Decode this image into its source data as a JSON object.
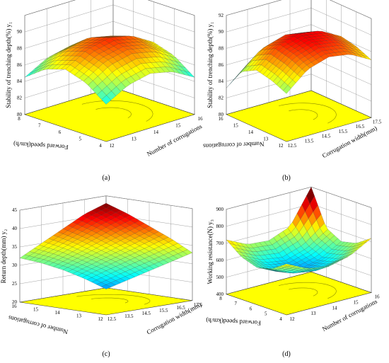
{
  "figure": {
    "panels": [
      "(a)",
      "(b)",
      "(c)",
      "(d)"
    ]
  },
  "chart_data": [
    {
      "panel": "(a)",
      "type": "surface",
      "xlabel": "Forward speed(km/h)",
      "ylabel": "Number of corrugations",
      "zlabel": "Stability of trenching depth(%) y₁",
      "x_ticks": [
        "4",
        "5",
        "6",
        "7",
        "8"
      ],
      "y_ticks": [
        "12",
        "13",
        "14",
        "15",
        "16"
      ],
      "z_ticks": [
        "80",
        "82",
        "84",
        "86",
        "88",
        "90"
      ],
      "xlim": [
        4,
        8
      ],
      "ylim": [
        12,
        16
      ],
      "zlim": [
        80,
        92
      ],
      "surface": {
        "grid_x": [
          4,
          5,
          6,
          7,
          8
        ],
        "grid_y": [
          12,
          13,
          14,
          15,
          16
        ],
        "z": [
          [
            84.5,
            86.0,
            86.6,
            86.0,
            84.5
          ],
          [
            86.3,
            87.9,
            88.5,
            87.9,
            86.3
          ],
          [
            87.1,
            88.7,
            89.3,
            88.7,
            87.1
          ],
          [
            86.3,
            87.9,
            88.5,
            87.9,
            86.3
          ],
          [
            84.5,
            86.0,
            86.6,
            86.0,
            84.5
          ]
        ]
      },
      "floor_color": "#ffff00"
    },
    {
      "panel": "(b)",
      "type": "surface",
      "xlabel": "Number of corrugations",
      "ylabel": "Corrugation width(mm)",
      "zlabel": "Stability of trenching depth(%) y₁",
      "x_ticks": [
        "12",
        "13",
        "14",
        "15",
        "16"
      ],
      "y_ticks": [
        "12.5",
        "13.5",
        "14.5",
        "15.5",
        "16.5",
        "17.5"
      ],
      "z_ticks": [
        "80",
        "82",
        "84",
        "86",
        "88",
        "90",
        "92"
      ],
      "xlim": [
        12,
        16
      ],
      "ylim": [
        12.5,
        17.5
      ],
      "zlim": [
        80,
        92
      ],
      "surface": {
        "grid_x": [
          12,
          13,
          14,
          15,
          16
        ],
        "grid_y": [
          12.5,
          13.75,
          15,
          16.25,
          17.5
        ],
        "z": [
          [
            85.8,
            88.0,
            88.8,
            88.4,
            87.0
          ],
          [
            86.6,
            88.8,
            89.6,
            89.2,
            87.8
          ],
          [
            87.0,
            89.2,
            90.0,
            89.6,
            88.2
          ],
          [
            86.0,
            88.2,
            89.0,
            88.6,
            87.2
          ],
          [
            83.2,
            85.4,
            86.2,
            85.8,
            84.4
          ]
        ]
      },
      "floor_color": "#ffff00"
    },
    {
      "panel": "(c)",
      "type": "surface",
      "xlabel": "Number of corrugations",
      "ylabel": "Corrugation width(mm)",
      "zlabel": "Return depth(mm) y₂",
      "x_ticks": [
        "12",
        "13",
        "14",
        "15",
        "16"
      ],
      "y_ticks": [
        "12.5",
        "13.5",
        "14.5",
        "15.5",
        "16.5",
        "17.5"
      ],
      "z_ticks": [
        "20",
        "25",
        "30",
        "35",
        "40",
        "45"
      ],
      "xlim": [
        12,
        16
      ],
      "ylim": [
        12.5,
        17.5
      ],
      "zlim": [
        20,
        45
      ],
      "surface": {
        "grid_x": [
          12,
          13,
          14,
          15,
          16
        ],
        "grid_y": [
          12.5,
          13.75,
          15,
          16.25,
          17.5
        ],
        "z": [
          [
            27.0,
            28.5,
            30.0,
            31.5,
            33.0
          ],
          [
            29.0,
            30.8,
            32.5,
            34.2,
            36.0
          ],
          [
            30.5,
            32.5,
            34.5,
            36.5,
            38.5
          ],
          [
            31.5,
            34.0,
            36.5,
            39.0,
            41.0
          ],
          [
            32.0,
            35.0,
            38.0,
            41.0,
            43.0
          ]
        ]
      },
      "floor_color": "#ffff00"
    },
    {
      "panel": "(d)",
      "type": "surface",
      "xlabel": "Forward speed(km/h)",
      "ylabel": "Number of corrugations",
      "zlabel": "Working resistance(N) y₃",
      "x_ticks": [
        "4",
        "5",
        "6",
        "7",
        "8"
      ],
      "y_ticks": [
        "12",
        "13",
        "14",
        "15",
        "16"
      ],
      "z_ticks": [
        "400",
        "500",
        "600",
        "700",
        "800",
        "900"
      ],
      "xlim": [
        4,
        8
      ],
      "ylim": [
        12,
        16
      ],
      "zlim": [
        400,
        900
      ],
      "surface": {
        "grid_x": [
          4,
          5,
          6,
          7,
          8
        ],
        "grid_y": [
          12,
          13,
          14,
          15,
          16
        ],
        "z": [
          [
            700,
            640,
            620,
            650,
            720
          ],
          [
            640,
            580,
            560,
            590,
            660
          ],
          [
            620,
            560,
            540,
            570,
            640
          ],
          [
            650,
            590,
            570,
            610,
            690
          ],
          [
            720,
            660,
            650,
            700,
            900
          ]
        ]
      },
      "floor_color": "#ffff00"
    }
  ]
}
